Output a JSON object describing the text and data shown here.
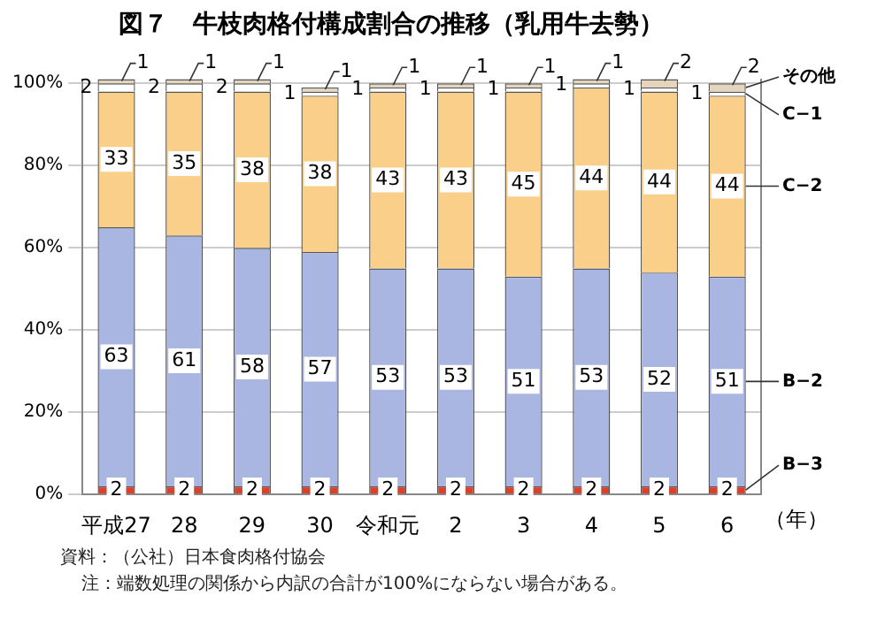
{
  "chart_data": {
    "type": "bar",
    "title": "図７　牛枝肉格付構成割合の推移（乳用牛去勢）",
    "xlabel": "（年）",
    "categories": [
      "平成27",
      "28",
      "29",
      "30",
      "令和元",
      "2",
      "3",
      "4",
      "5",
      "6"
    ],
    "stacked": true,
    "data_labels": true,
    "grid": "y",
    "legend": false,
    "series": [
      {
        "name": "B−3",
        "color": "#d9412b",
        "values": [
          2,
          2,
          2,
          2,
          2,
          2,
          2,
          2,
          2,
          2
        ]
      },
      {
        "name": "B−2",
        "color": "#aab6e2",
        "values": [
          63,
          61,
          58,
          57,
          53,
          53,
          51,
          53,
          52,
          51
        ]
      },
      {
        "name": "C−2",
        "color": "#f9cf8a",
        "values": [
          33,
          35,
          38,
          38,
          43,
          43,
          45,
          44,
          44,
          44
        ]
      },
      {
        "name": "C−1",
        "color": "#ffffff",
        "values": [
          2,
          2,
          2,
          1,
          1,
          1,
          1,
          1,
          1,
          1
        ]
      },
      {
        "name": "その他",
        "color": "#e6d5bd",
        "values": [
          1,
          1,
          1,
          1,
          1,
          1,
          1,
          1,
          2,
          2
        ]
      }
    ],
    "ylim": [
      0,
      101
    ],
    "yticks": [
      {
        "value": 0,
        "label": "0%"
      },
      {
        "value": 20,
        "label": "20%"
      },
      {
        "value": 40,
        "label": "40%"
      },
      {
        "value": 60,
        "label": "60%"
      },
      {
        "value": 80,
        "label": "80%"
      },
      {
        "value": 100,
        "label": "100%"
      }
    ],
    "annotations": [
      "資料：（公社）日本食肉格付協会",
      "注：端数処理の関係から内訳の合計が100%にならない場合がある。"
    ]
  }
}
